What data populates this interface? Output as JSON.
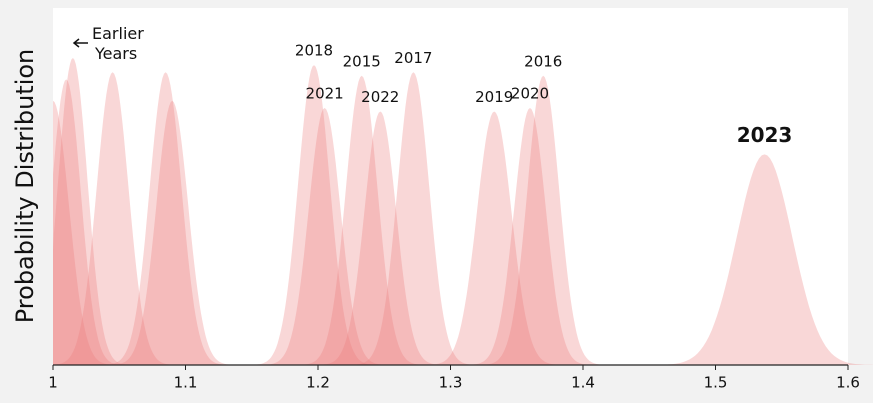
{
  "chart_data": {
    "type": "density",
    "ylabel": "Probability Distribution",
    "annotation": "Earlier\nYears",
    "highlight": "2023",
    "color": "#ec7a7a",
    "xlim": [
      1,
      1.6
    ],
    "xticks": [
      1,
      1.1,
      1.2,
      1.3,
      1.4,
      1.5,
      1.6
    ],
    "ylim": [
      0,
      1
    ],
    "series": [
      {
        "name": null,
        "mean": 1.0,
        "sd": 0.012,
        "peak": 0.74
      },
      {
        "name": null,
        "mean": 1.01,
        "sd": 0.011,
        "peak": 0.8
      },
      {
        "name": null,
        "mean": 1.015,
        "sd": 0.011,
        "peak": 0.86
      },
      {
        "name": null,
        "mean": 1.045,
        "sd": 0.012,
        "peak": 0.82
      },
      {
        "name": null,
        "mean": 1.085,
        "sd": 0.012,
        "peak": 0.82
      },
      {
        "name": null,
        "mean": 1.09,
        "sd": 0.012,
        "peak": 0.74
      },
      {
        "name": "2018",
        "mean": 1.197,
        "sd": 0.012,
        "peak": 0.84
      },
      {
        "name": "2021",
        "mean": 1.205,
        "sd": 0.012,
        "peak": 0.72
      },
      {
        "name": "2015",
        "mean": 1.233,
        "sd": 0.012,
        "peak": 0.81
      },
      {
        "name": "2022",
        "mean": 1.247,
        "sd": 0.012,
        "peak": 0.71
      },
      {
        "name": "2017",
        "mean": 1.272,
        "sd": 0.012,
        "peak": 0.82
      },
      {
        "name": "2019",
        "mean": 1.333,
        "sd": 0.013,
        "peak": 0.71
      },
      {
        "name": "2020",
        "mean": 1.36,
        "sd": 0.012,
        "peak": 0.72
      },
      {
        "name": "2016",
        "mean": 1.37,
        "sd": 0.012,
        "peak": 0.81
      },
      {
        "name": "2023",
        "mean": 1.537,
        "sd": 0.021,
        "peak": 0.59
      }
    ]
  }
}
